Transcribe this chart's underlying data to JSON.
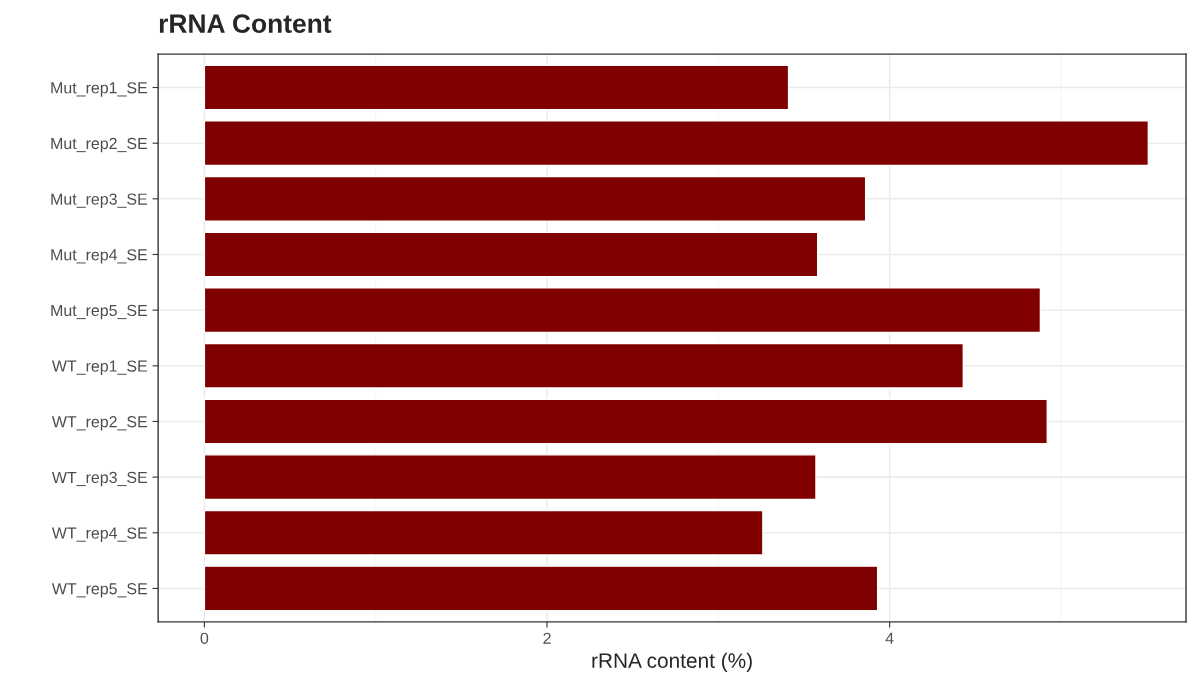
{
  "chart_data": {
    "type": "bar",
    "orientation": "horizontal",
    "title": "rRNA Content",
    "xlabel": "rRNA content (%)",
    "categories": [
      "Mut_rep1_SE",
      "Mut_rep2_SE",
      "Mut_rep3_SE",
      "Mut_rep4_SE",
      "Mut_rep5_SE",
      "WT_rep1_SE",
      "WT_rep2_SE",
      "WT_rep3_SE",
      "WT_rep4_SE",
      "WT_rep5_SE"
    ],
    "values": [
      3.41,
      5.51,
      3.86,
      3.58,
      4.88,
      4.43,
      4.92,
      3.57,
      3.26,
      3.93
    ],
    "color": "#800000",
    "xlim": [
      -0.27,
      5.73
    ],
    "xticks": [
      0,
      2,
      4
    ],
    "grid": true,
    "legend": false
  }
}
